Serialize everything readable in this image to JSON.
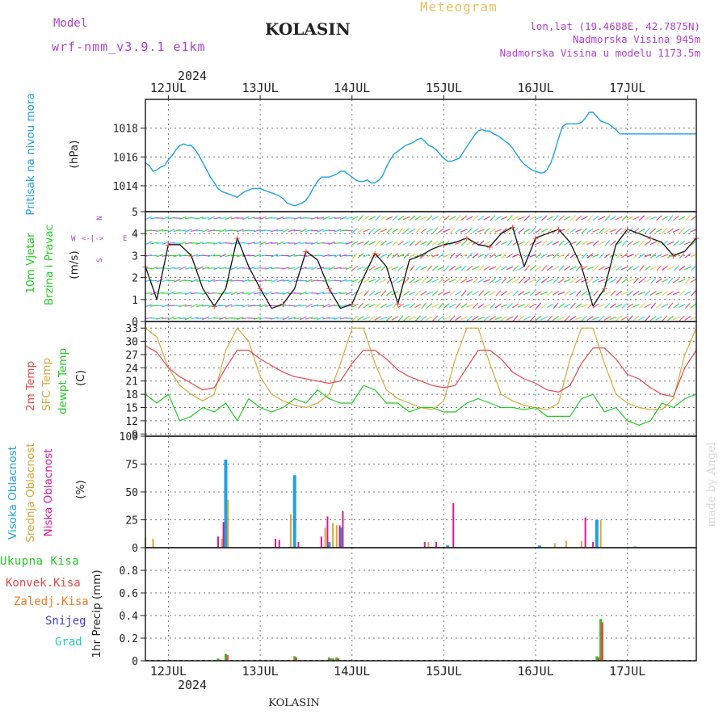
{
  "header": {
    "model_label": "Model",
    "model_name": "wrf-nmm_v3.9.1  e1km",
    "station": "KOLASIN",
    "title": "Meteogram",
    "lonlat": "lon,lat (19.4688E, 42.7875N)",
    "elevation": "Nadmorska Visina 945m",
    "model_elevation": "Nadmorska Visina u modelu 1173.5m",
    "year": "2024",
    "footer_station": "KOLASIN",
    "credit": "made by Angel"
  },
  "colors": {
    "pressure": "#1ea0e6",
    "t2m": "#e84848",
    "sfc": "#d8a838",
    "dewpt": "#22cc22",
    "high_cloud": "#1ea0e6",
    "mid_cloud": "#d8a838",
    "low_cloud": "#d81890",
    "total_precip": "#22cc22",
    "conv_precip": "#e84848",
    "frz_precip": "#f07820",
    "snow": "#4040d8",
    "hail": "#22c8c8",
    "wind_text": "#22cc22",
    "wind_rose": "#b040d0"
  },
  "x_axis": {
    "days": [
      "12JUL",
      "13JUL",
      "14JUL",
      "15JUL",
      "16JUL",
      "17JUL"
    ],
    "day_offsets": [
      6,
      30,
      54,
      78,
      102,
      126
    ],
    "range_hours": [
      0,
      144
    ]
  },
  "wind_rose": {
    "n": "N",
    "s": "S",
    "e": "E",
    "w": "W"
  },
  "chart_data": [
    {
      "type": "line",
      "panel": "pressure",
      "ylabel": "Pritisak na nivou mora",
      "unit": "(hPa)",
      "yticks": [
        1014,
        1016,
        1018
      ],
      "ylim": [
        1012.2,
        1020.0
      ],
      "x": [
        0,
        1,
        2,
        3,
        4,
        5,
        6,
        7,
        8,
        9,
        10,
        11,
        12,
        13,
        14,
        15,
        16,
        17,
        18,
        19,
        20,
        21,
        22,
        23,
        24,
        25,
        26,
        27,
        28,
        29,
        30,
        31,
        32,
        33,
        34,
        35,
        36,
        37,
        38,
        39,
        40,
        41,
        42,
        43,
        44,
        45,
        46,
        47,
        48,
        49,
        50,
        51,
        52,
        53,
        54,
        55,
        56,
        57,
        58,
        59,
        60,
        61,
        62,
        63,
        64,
        65,
        66,
        67,
        68,
        69,
        70,
        71,
        72,
        73,
        74,
        75,
        76,
        77,
        78,
        79,
        80,
        81,
        82,
        83,
        84,
        85,
        86,
        87,
        88,
        89,
        90,
        91,
        92,
        93,
        94,
        95,
        96,
        97,
        98,
        99,
        100,
        101,
        102,
        103,
        104,
        105,
        106,
        107,
        108,
        109,
        110,
        111,
        112,
        113,
        114,
        115,
        116,
        117,
        118,
        119,
        120,
        121,
        122,
        123,
        124,
        125,
        126,
        127,
        128,
        129,
        130,
        131,
        132,
        133,
        134,
        135,
        136,
        137,
        138,
        139,
        140,
        141,
        142,
        143,
        144
      ],
      "series": [
        {
          "values": [
            1015.6,
            1015.4,
            1015.0,
            1015.1,
            1015.3,
            1015.4,
            1015.8,
            1016.1,
            1016.5,
            1016.8,
            1016.9,
            1016.8,
            1016.8,
            1016.5,
            1016.1,
            1015.6,
            1015.1,
            1014.6,
            1014.2,
            1013.8,
            1013.6,
            1013.5,
            1013.4,
            1013.3,
            1013.2,
            1013.4,
            1013.6,
            1013.7,
            1013.8,
            1013.8,
            1013.8,
            1013.7,
            1013.6,
            1013.5,
            1013.4,
            1013.3,
            1013.1,
            1012.8,
            1012.7,
            1012.6,
            1012.7,
            1012.8,
            1013.0,
            1013.4,
            1013.9,
            1014.3,
            1014.6,
            1014.6,
            1014.6,
            1014.7,
            1014.8,
            1015.0,
            1015.0,
            1014.8,
            1014.6,
            1014.4,
            1014.3,
            1014.3,
            1014.4,
            1014.2,
            1014.2,
            1014.4,
            1014.7,
            1015.3,
            1015.8,
            1016.2,
            1016.4,
            1016.6,
            1016.8,
            1016.9,
            1017.0,
            1017.2,
            1017.3,
            1017.1,
            1016.8,
            1016.7,
            1016.5,
            1016.2,
            1015.9,
            1015.7,
            1015.7,
            1015.8,
            1015.9,
            1016.3,
            1016.7,
            1017.1,
            1017.5,
            1017.8,
            1017.9,
            1017.8,
            1017.8,
            1017.6,
            1017.5,
            1017.3,
            1017.1,
            1016.9,
            1016.6,
            1016.2,
            1015.8,
            1015.5,
            1015.3,
            1015.1,
            1015.0,
            1014.9,
            1014.9,
            1015.1,
            1015.6,
            1016.4,
            1017.3,
            1018.1,
            1018.3,
            1018.3,
            1018.3,
            1018.3,
            1018.4,
            1018.7,
            1019.1,
            1019.1,
            1018.8,
            1018.5,
            1018.4,
            1018.3,
            1018.1,
            1017.9,
            1017.6,
            1017.6,
            1017.6,
            1017.6,
            1017.6,
            1017.6,
            1017.6,
            1017.6,
            1017.6,
            1017.6,
            1017.6,
            1017.6,
            1017.6,
            1017.6,
            1017.6,
            1017.6,
            1017.6,
            1017.6,
            1017.6,
            1017.6,
            1017.6
          ]
        }
      ]
    },
    {
      "type": "line",
      "panel": "wind",
      "ylabel": "10m Vjetar Brzina i Pravac",
      "unit": "(m/s)",
      "yticks": [
        0,
        1,
        2,
        3,
        4,
        5
      ],
      "ylim": [
        0,
        5
      ],
      "x": [
        0,
        3,
        6,
        9,
        12,
        15,
        18,
        21,
        24,
        27,
        30,
        33,
        36,
        39,
        42,
        45,
        48,
        51,
        54,
        57,
        60,
        63,
        66,
        69,
        72,
        75,
        78,
        81,
        84,
        87,
        90,
        93,
        96,
        99,
        102,
        105,
        108,
        111,
        114,
        117,
        120,
        123,
        126,
        129,
        132,
        135,
        138,
        141,
        144
      ],
      "series": [
        {
          "values": [
            2.5,
            1.0,
            3.5,
            3.5,
            3.0,
            1.5,
            0.7,
            1.5,
            3.8,
            2.5,
            1.5,
            0.6,
            0.8,
            1.5,
            3.2,
            2.8,
            1.5,
            0.6,
            0.8,
            2.0,
            3.1,
            2.5,
            0.8,
            2.8,
            3.0,
            3.3,
            3.5,
            3.6,
            3.8,
            3.5,
            3.4,
            4.0,
            4.3,
            2.5,
            3.8,
            4.0,
            4.2,
            3.6,
            2.5,
            0.7,
            1.5,
            3.5,
            4.2,
            4.0,
            3.8,
            3.6,
            3.0,
            3.2,
            3.8
          ]
        }
      ]
    },
    {
      "type": "line",
      "panel": "temperature",
      "ylabel": "2m Temp / SFC Temp / dewpt Temp",
      "unit": "(C)",
      "yticks": [
        9,
        12,
        15,
        18,
        21,
        24,
        27,
        30,
        33
      ],
      "ylim": [
        8.5,
        34.5
      ],
      "x": [
        0,
        3,
        6,
        9,
        12,
        15,
        18,
        21,
        24,
        27,
        30,
        33,
        36,
        39,
        42,
        45,
        48,
        51,
        54,
        57,
        60,
        63,
        66,
        69,
        72,
        75,
        78,
        81,
        84,
        87,
        90,
        93,
        96,
        99,
        102,
        105,
        108,
        111,
        114,
        117,
        120,
        123,
        126,
        129,
        132,
        135,
        138,
        141,
        144
      ],
      "series": [
        {
          "name": "2m Temp",
          "values": [
            29,
            27.5,
            24,
            22,
            20.5,
            19,
            19.5,
            24,
            28,
            28,
            26,
            24.5,
            23,
            22,
            21.5,
            21,
            20.5,
            21,
            25,
            28,
            28,
            26,
            23.5,
            22,
            21,
            20,
            19.5,
            20,
            24,
            28,
            28,
            26,
            23,
            21.5,
            20.5,
            19,
            18.5,
            20,
            25,
            28.5,
            28.5,
            26,
            22.5,
            21.5,
            19.5,
            18,
            17.5,
            24,
            28
          ]
        },
        {
          "name": "SFC Temp",
          "values": [
            33,
            31,
            24,
            20,
            18,
            16.5,
            18,
            28,
            33,
            30,
            22,
            18,
            16.5,
            15.5,
            15,
            16,
            18,
            25,
            33,
            33,
            25,
            19,
            17,
            16,
            15,
            14.5,
            16.5,
            26,
            33,
            33,
            25,
            18,
            16.5,
            15.5,
            15,
            14.5,
            16,
            26,
            33,
            33,
            25,
            18,
            16,
            15,
            14.5,
            14.5,
            17,
            27,
            33
          ]
        },
        {
          "name": "dewpt Temp",
          "values": [
            18,
            16,
            18,
            12,
            13,
            15,
            14,
            16,
            12,
            17,
            15,
            14,
            15,
            17,
            16,
            19,
            17,
            16,
            16,
            20,
            19,
            16,
            16,
            14,
            15,
            15,
            14,
            14,
            16,
            17,
            16,
            15,
            15,
            14.5,
            15,
            13,
            13,
            13,
            17,
            18,
            14,
            15,
            12,
            11,
            12,
            16,
            15,
            17,
            18
          ]
        }
      ]
    },
    {
      "type": "bar",
      "panel": "clouds",
      "ylabel": "Visoka Oblacnost / Srednja Oblacnost / Niska Oblacnost",
      "unit": "(%)",
      "yticks": [
        0,
        25,
        50,
        75,
        100
      ],
      "ylim": [
        0,
        100
      ],
      "series": [
        {
          "name": "Visoka Oblacnost",
          "x": [
            21,
            39,
            48,
            51,
            79,
            103,
            118,
            128
          ],
          "values": [
            79,
            65,
            5,
            18,
            2,
            2,
            25,
            1
          ]
        },
        {
          "name": "Srednja Oblacnost",
          "x": [
            0,
            2,
            20,
            21.6,
            38,
            47,
            49,
            50,
            74,
            78,
            107,
            110,
            114,
            119
          ],
          "values": [
            9,
            8,
            8,
            43,
            30,
            18,
            22,
            20,
            5,
            1,
            4,
            6,
            6,
            25
          ]
        },
        {
          "name": "Niska Oblacnost",
          "x": [
            19,
            20.4,
            34,
            35,
            40,
            46,
            47.6,
            50.8,
            51.6,
            73,
            76,
            80.5,
            115,
            117
          ],
          "values": [
            10,
            23,
            8,
            7,
            5,
            10,
            28,
            20,
            33,
            5,
            5,
            40,
            27,
            5
          ]
        }
      ]
    },
    {
      "type": "bar",
      "panel": "precipitation",
      "ylabel": "1hr Precip",
      "unit": "(mm)",
      "yticks": [
        0,
        0.2,
        0.4,
        0.6,
        0.8
      ],
      "ylim": [
        0,
        1.0
      ],
      "series": [
        {
          "name": "Ukupna  Kisa",
          "x": [
            19,
            21,
            39,
            48,
            49,
            50,
            118,
            119
          ],
          "values": [
            0.02,
            0.06,
            0.04,
            0.03,
            0.02,
            0.03,
            0.04,
            0.37
          ]
        },
        {
          "name": "Konvek.Kisa",
          "x": [
            19.4,
            21.4,
            39.4,
            48.4,
            49.4,
            50.4,
            118.4,
            119.4
          ],
          "values": [
            0.01,
            0.05,
            0.03,
            0.02,
            0.01,
            0.02,
            0.03,
            0.34
          ]
        },
        {
          "name": "Zaledj.Kisa",
          "values": []
        },
        {
          "name": "Snijeg",
          "values": []
        },
        {
          "name": "Grad",
          "values": []
        }
      ]
    }
  ]
}
